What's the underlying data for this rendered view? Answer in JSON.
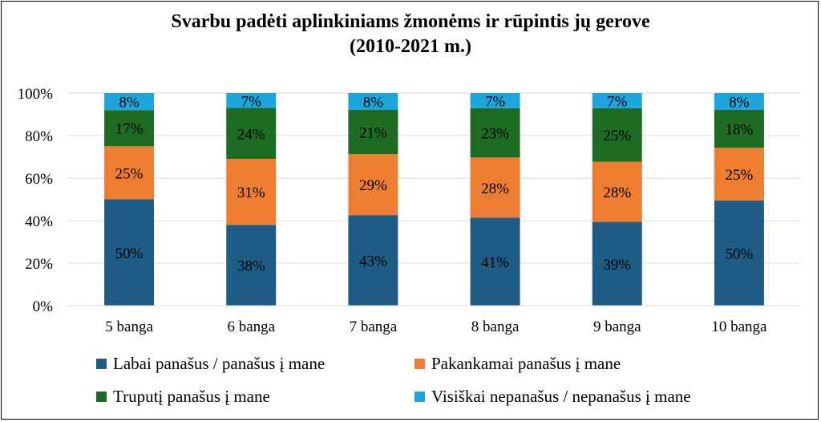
{
  "chart_data": {
    "type": "bar",
    "stacked": "percent",
    "title": [
      "Svarbu padėti aplinkiniams žmonėms ir rūpintis jų gerove",
      "(2010-2021 m.)"
    ],
    "categories": [
      "5 banga",
      "6 banga",
      "7 banga",
      "8 banga",
      "9 banga",
      "10 banga"
    ],
    "yticks": [
      "0%",
      "20%",
      "40%",
      "60%",
      "80%",
      "100%"
    ],
    "ylim": [
      0,
      100
    ],
    "grid": true,
    "legend_position": "bottom",
    "series": [
      {
        "name": "Labai panašus / panašus į mane",
        "color": "#1f5c85",
        "values": [
          50,
          38,
          43,
          41,
          39,
          50
        ]
      },
      {
        "name": "Pakankamai panašus į mane",
        "color": "#ed7d31",
        "values": [
          25,
          31,
          29,
          28,
          28,
          25
        ]
      },
      {
        "name": "Truputį panašus į mane",
        "color": "#1e6b23",
        "values": [
          17,
          24,
          21,
          23,
          25,
          18
        ]
      },
      {
        "name": "Visiškai nepanašus / nepanašus į mane",
        "color": "#1ea5db",
        "values": [
          8,
          7,
          8,
          7,
          7,
          8
        ]
      }
    ]
  }
}
